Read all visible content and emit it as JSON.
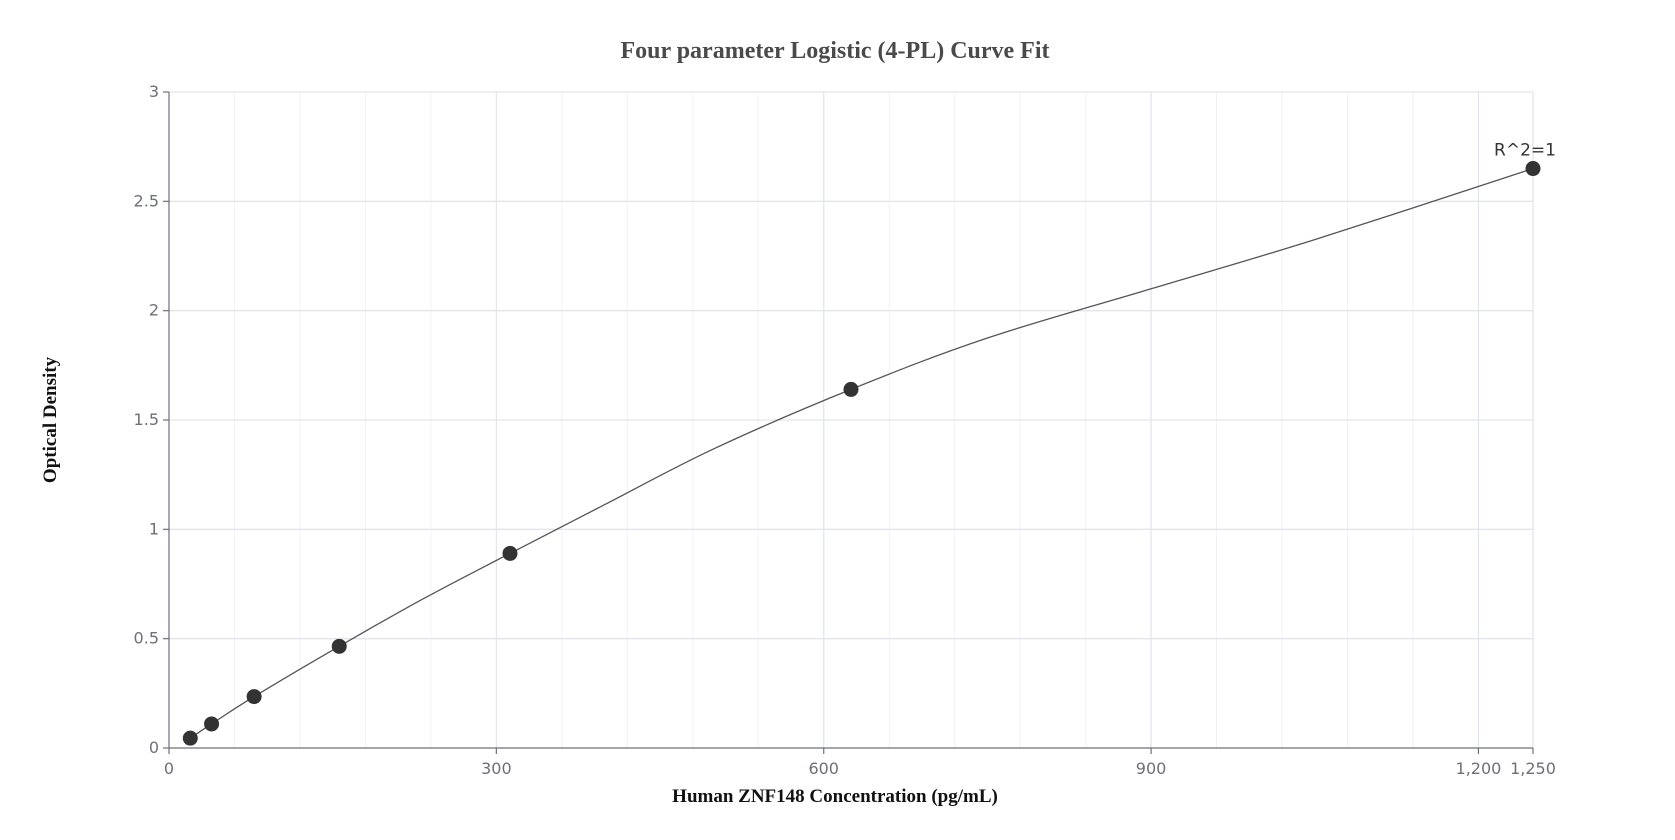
{
  "chart_data": {
    "type": "scatter",
    "title": "Four parameter Logistic (4-PL) Curve Fit",
    "xlabel": "Human ZNF148 Concentration (pg/mL)",
    "ylabel": "Optical Density",
    "xlim": [
      0,
      1250
    ],
    "ylim": [
      0,
      3
    ],
    "x_ticks": [
      0,
      300,
      600,
      900,
      1200,
      1250
    ],
    "x_tick_labels": [
      "0",
      "300",
      "600",
      "900",
      "1,200",
      "1,250"
    ],
    "y_ticks": [
      0,
      0.5,
      1,
      1.5,
      2,
      2.5,
      3
    ],
    "y_tick_labels": [
      "0",
      "0.5",
      "1",
      "1.5",
      "2",
      "2.5",
      "3"
    ],
    "x_minor_step": 60,
    "grid": true,
    "series": [
      {
        "x": [
          19.5,
          39,
          78,
          156,
          312.5,
          625,
          1250
        ],
        "y": [
          0.045,
          0.11,
          0.235,
          0.465,
          0.89,
          1.64,
          2.65
        ]
      }
    ],
    "fit_curve": {
      "model": "4PL",
      "x": [
        19.5,
        39,
        78,
        156,
        234,
        312.5,
        400,
        500,
        625,
        750,
        900,
        1050,
        1250
      ],
      "y": [
        0.045,
        0.11,
        0.235,
        0.465,
        0.685,
        0.89,
        1.115,
        1.37,
        1.64,
        1.875,
        2.1,
        2.325,
        2.65
      ]
    },
    "annotation": {
      "text": "R^2=1",
      "x": 1250,
      "y": 2.65
    }
  },
  "colors": {
    "points": "#333333",
    "curve": "#555555",
    "grid_major": "#e3e5ec",
    "grid_minor": "#f1f2f6",
    "axis": "#6e7079"
  }
}
